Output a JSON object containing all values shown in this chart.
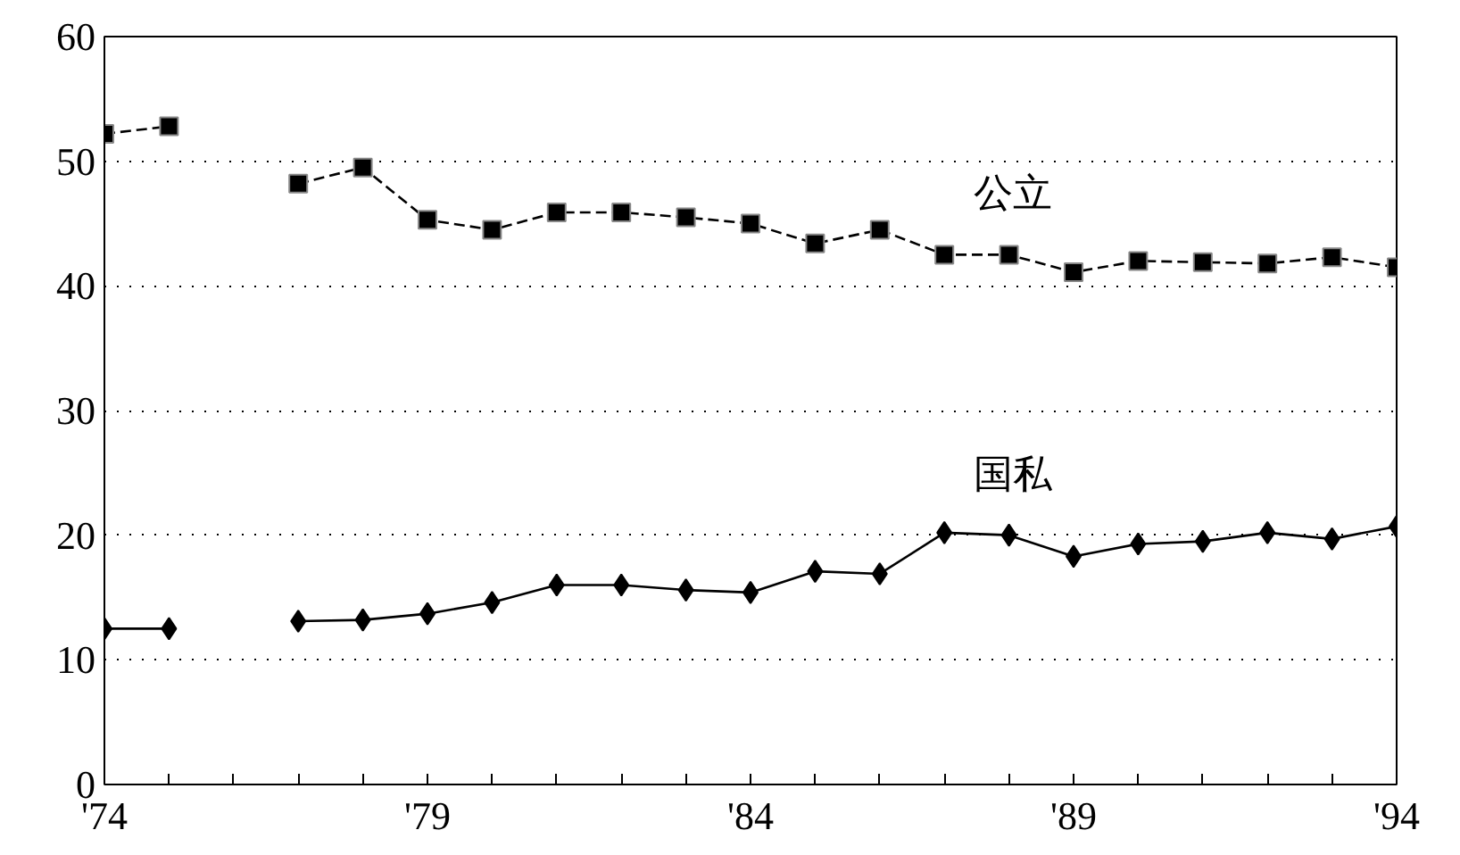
{
  "chart_data": {
    "type": "line",
    "x": [
      1974,
      1975,
      1976,
      1977,
      1978,
      1979,
      1980,
      1981,
      1982,
      1983,
      1984,
      1985,
      1986,
      1987,
      1988,
      1989,
      1990,
      1991,
      1992,
      1993,
      1994
    ],
    "series": [
      {
        "name": "公立",
        "color": "#000000",
        "marker": "square",
        "line_style": "dashed",
        "values": [
          52.2,
          52.8,
          null,
          48.2,
          49.5,
          45.3,
          44.5,
          45.9,
          45.9,
          45.5,
          45.0,
          43.4,
          44.5,
          42.5,
          42.5,
          41.1,
          42.0,
          41.9,
          41.8,
          42.3,
          41.5
        ]
      },
      {
        "name": "国私",
        "color": "#000000",
        "marker": "diamond",
        "line_style": "solid",
        "values": [
          12.5,
          12.5,
          null,
          13.1,
          13.2,
          13.7,
          14.6,
          16.0,
          16.0,
          15.6,
          15.4,
          17.1,
          16.9,
          20.2,
          20.0,
          18.3,
          19.3,
          19.5,
          20.2,
          19.7,
          20.7
        ]
      }
    ],
    "xlim": [
      1974,
      1994
    ],
    "xticks": [
      {
        "value": 1974,
        "label": "'74"
      },
      {
        "value": 1975,
        "label": null
      },
      {
        "value": 1976,
        "label": null
      },
      {
        "value": 1977,
        "label": null
      },
      {
        "value": 1978,
        "label": null
      },
      {
        "value": 1979,
        "label": "'79"
      },
      {
        "value": 1980,
        "label": null
      },
      {
        "value": 1981,
        "label": null
      },
      {
        "value": 1982,
        "label": null
      },
      {
        "value": 1983,
        "label": null
      },
      {
        "value": 1984,
        "label": "'84"
      },
      {
        "value": 1985,
        "label": null
      },
      {
        "value": 1986,
        "label": null
      },
      {
        "value": 1987,
        "label": null
      },
      {
        "value": 1988,
        "label": null
      },
      {
        "value": 1989,
        "label": "'89"
      },
      {
        "value": 1990,
        "label": null
      },
      {
        "value": 1991,
        "label": null
      },
      {
        "value": 1992,
        "label": null
      },
      {
        "value": 1993,
        "label": null
      },
      {
        "value": 1994,
        "label": "'94"
      }
    ],
    "ylim": [
      0,
      60
    ],
    "yticks": [
      0,
      10,
      20,
      30,
      40,
      50,
      60
    ],
    "grid": "y"
  }
}
